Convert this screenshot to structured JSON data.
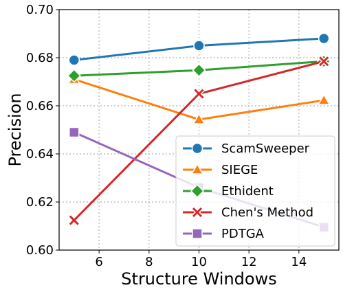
{
  "chart_data": {
    "type": "line",
    "title": "",
    "xlabel": "Structure Windows",
    "ylabel": "Precision",
    "x": [
      5,
      10,
      15
    ],
    "xlim": [
      4.4,
      15.6
    ],
    "ylim": [
      0.6,
      0.7
    ],
    "xticks": [
      6,
      8,
      10,
      12,
      14
    ],
    "yticks": [
      0.6,
      0.62,
      0.64,
      0.66,
      0.68,
      0.7
    ],
    "ytick_labels": [
      "0.60",
      "0.62",
      "0.64",
      "0.66",
      "0.68",
      "0.70"
    ],
    "grid": true,
    "legend_position": "lower-right",
    "series": [
      {
        "name": "ScamSweeper",
        "values": [
          0.679,
          0.685,
          0.688
        ],
        "color": "#1f77b4",
        "marker": "circle"
      },
      {
        "name": "SIEGE",
        "values": [
          0.671,
          0.6543,
          0.6623
        ],
        "color": "#ff7f0e",
        "marker": "triangle"
      },
      {
        "name": "Ethident",
        "values": [
          0.6725,
          0.6748,
          0.6785
        ],
        "color": "#2ca02c",
        "marker": "diamond"
      },
      {
        "name": "Chen's Method",
        "values": [
          0.6124,
          0.665,
          0.6785
        ],
        "color": "#d62728",
        "marker": "x"
      },
      {
        "name": "PDTGA",
        "values": [
          0.649,
          0.626,
          0.6095
        ],
        "color": "#9467bd",
        "marker": "square"
      }
    ]
  }
}
